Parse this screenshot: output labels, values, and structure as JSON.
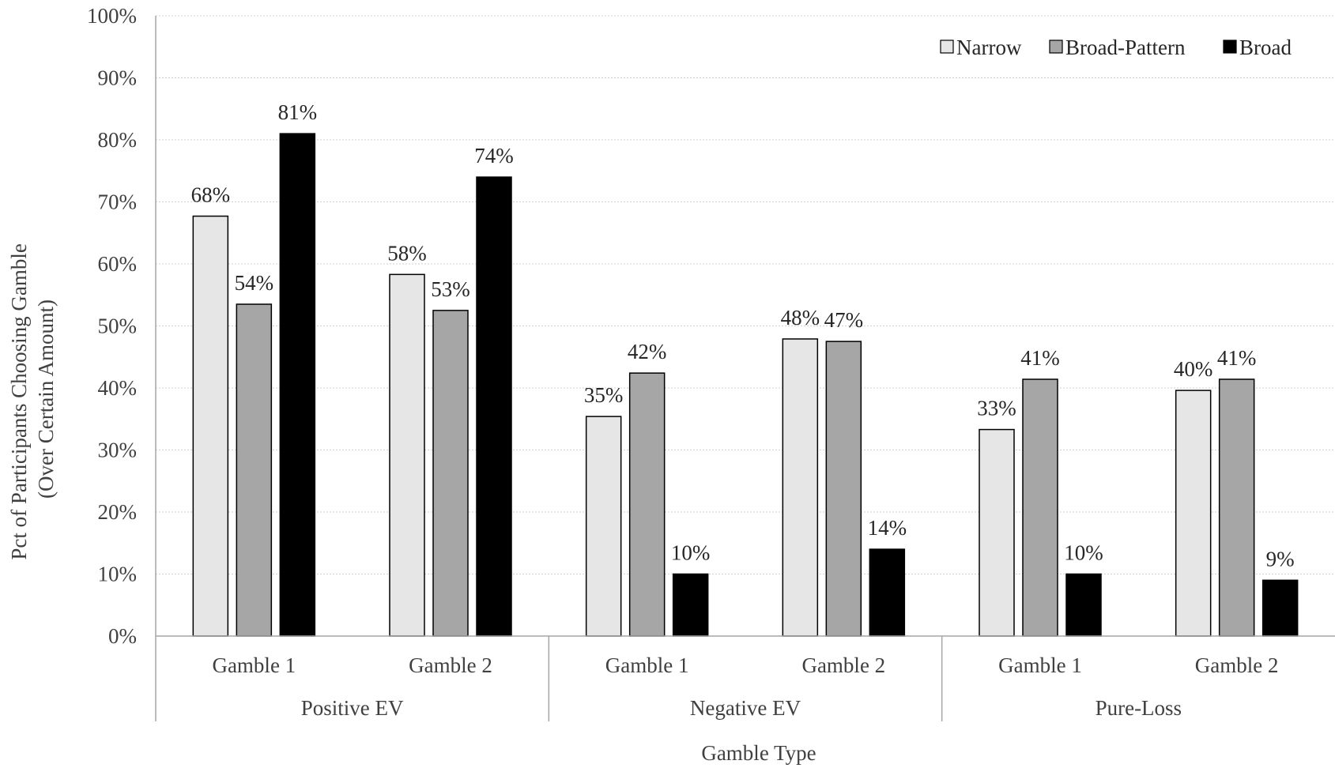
{
  "chart_data": {
    "type": "bar",
    "title": "",
    "ylabel": "Pct of Participants Choosing Gamble",
    "ylabel_line2": "(Over Certain Amount)",
    "xlabel": "Gamble Type",
    "ylim": [
      0,
      100
    ],
    "ytick_values": [
      0,
      10,
      20,
      30,
      40,
      50,
      60,
      70,
      80,
      90,
      100
    ],
    "ytick_labels": [
      "0%",
      "10%",
      "20%",
      "30%",
      "40%",
      "50%",
      "60%",
      "70%",
      "80%",
      "90%",
      "100%"
    ],
    "grid": true,
    "legend_position": "top-right",
    "groups": [
      "Positive EV",
      "Negative EV",
      "Pure-Loss"
    ],
    "categories": [
      "Gamble 1",
      "Gamble 2",
      "Gamble 1",
      "Gamble 2",
      "Gamble 1",
      "Gamble 2"
    ],
    "category_group_index": [
      0,
      0,
      1,
      1,
      2,
      2
    ],
    "series": [
      {
        "name": "Narrow",
        "color": "#e6e6e6",
        "values": [
          67.7,
          58.3,
          35.4,
          47.9,
          33.3,
          39.6
        ],
        "labels": [
          "68%",
          "58%",
          "35%",
          "48%",
          "33%",
          "40%"
        ]
      },
      {
        "name": "Broad-Pattern",
        "color": "#a6a6a6",
        "values": [
          53.5,
          52.5,
          42.4,
          47.5,
          41.4,
          41.4
        ],
        "labels": [
          "54%",
          "53%",
          "42%",
          "47%",
          "41%",
          "41%"
        ]
      },
      {
        "name": "Broad",
        "color": "#000000",
        "values": [
          81,
          74,
          10,
          14,
          10,
          9
        ],
        "labels": [
          "81%",
          "74%",
          "10%",
          "14%",
          "10%",
          "9%"
        ]
      }
    ]
  }
}
